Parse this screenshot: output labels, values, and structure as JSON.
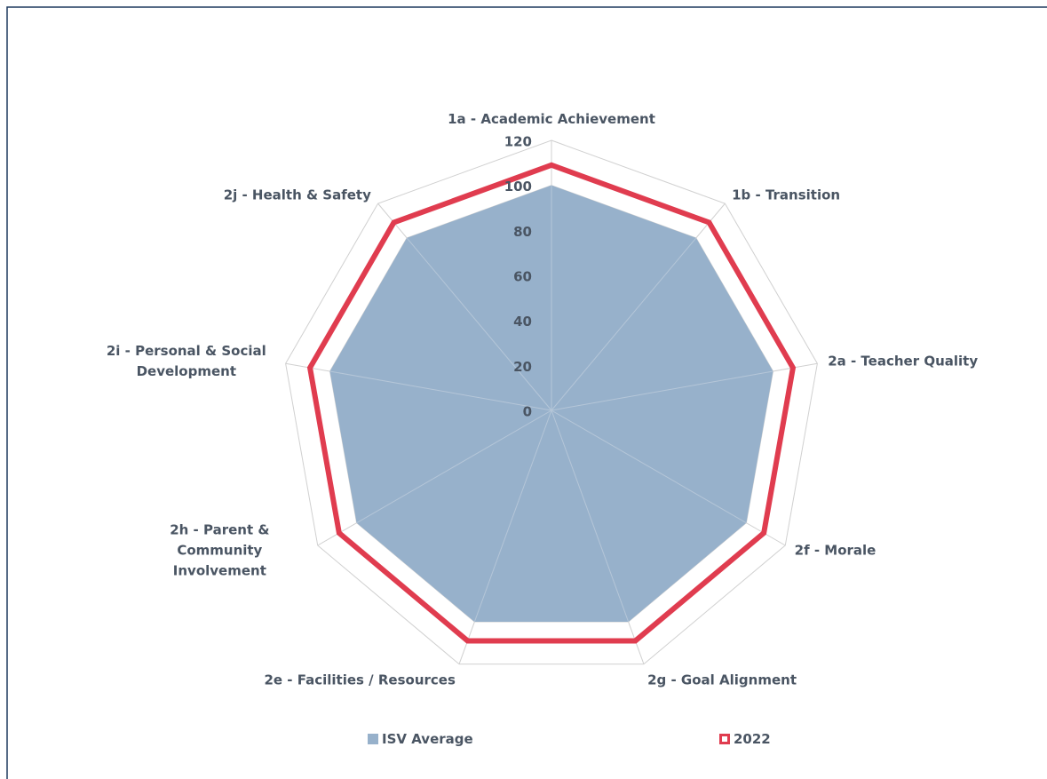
{
  "chart_data": {
    "type": "radar",
    "categories": [
      "1a - Academic Achievement",
      "1b - Transition",
      "2a - Teacher Quality",
      "2f - Morale",
      "2g - Goal Alignment",
      "2e - Facilities / Resources",
      "2h - Parent & Community Involvement",
      "2i - Personal & Social Development",
      "2j - Health & Safety"
    ],
    "series": [
      {
        "name": "ISV Average",
        "color": "#97b1cb",
        "values": [
          100,
          100,
          100,
          100,
          100,
          100,
          100,
          100,
          100
        ]
      },
      {
        "name": "2022",
        "color": "#e03c4f",
        "values": [
          109,
          109,
          109,
          109,
          109,
          109,
          109,
          109,
          109
        ]
      }
    ],
    "rlim": [
      0,
      120
    ],
    "rticks": [
      0,
      20,
      40,
      60,
      80,
      100,
      120
    ],
    "grid": true
  }
}
